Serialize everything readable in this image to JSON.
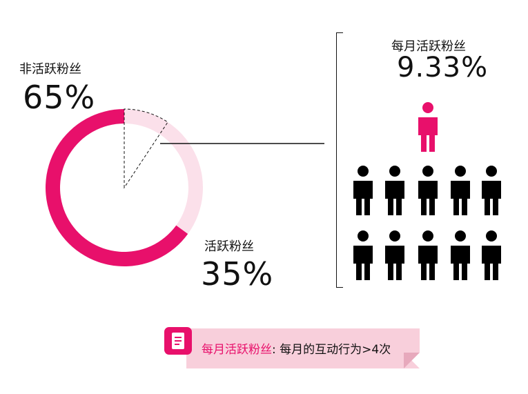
{
  "chart_data": {
    "type": "pie",
    "style": "donut",
    "slices": [
      {
        "label": "非活跃粉丝",
        "value": 65,
        "display": "65%",
        "color": "#e8106b"
      },
      {
        "label": "活跃粉丝",
        "value": 35,
        "display": "35%",
        "color": "#fbe0ea"
      }
    ],
    "highlight": {
      "label": "每月活跃粉丝",
      "value": 9.33,
      "display": "9.33%"
    }
  },
  "pictogram": {
    "highlight_color": "#e8106b",
    "base_color": "#000000",
    "highlighted_count": 1,
    "rows": [
      5,
      5
    ]
  },
  "note": {
    "term": "每月活跃粉丝",
    "definition": ": 每月的互动行为>4次"
  }
}
